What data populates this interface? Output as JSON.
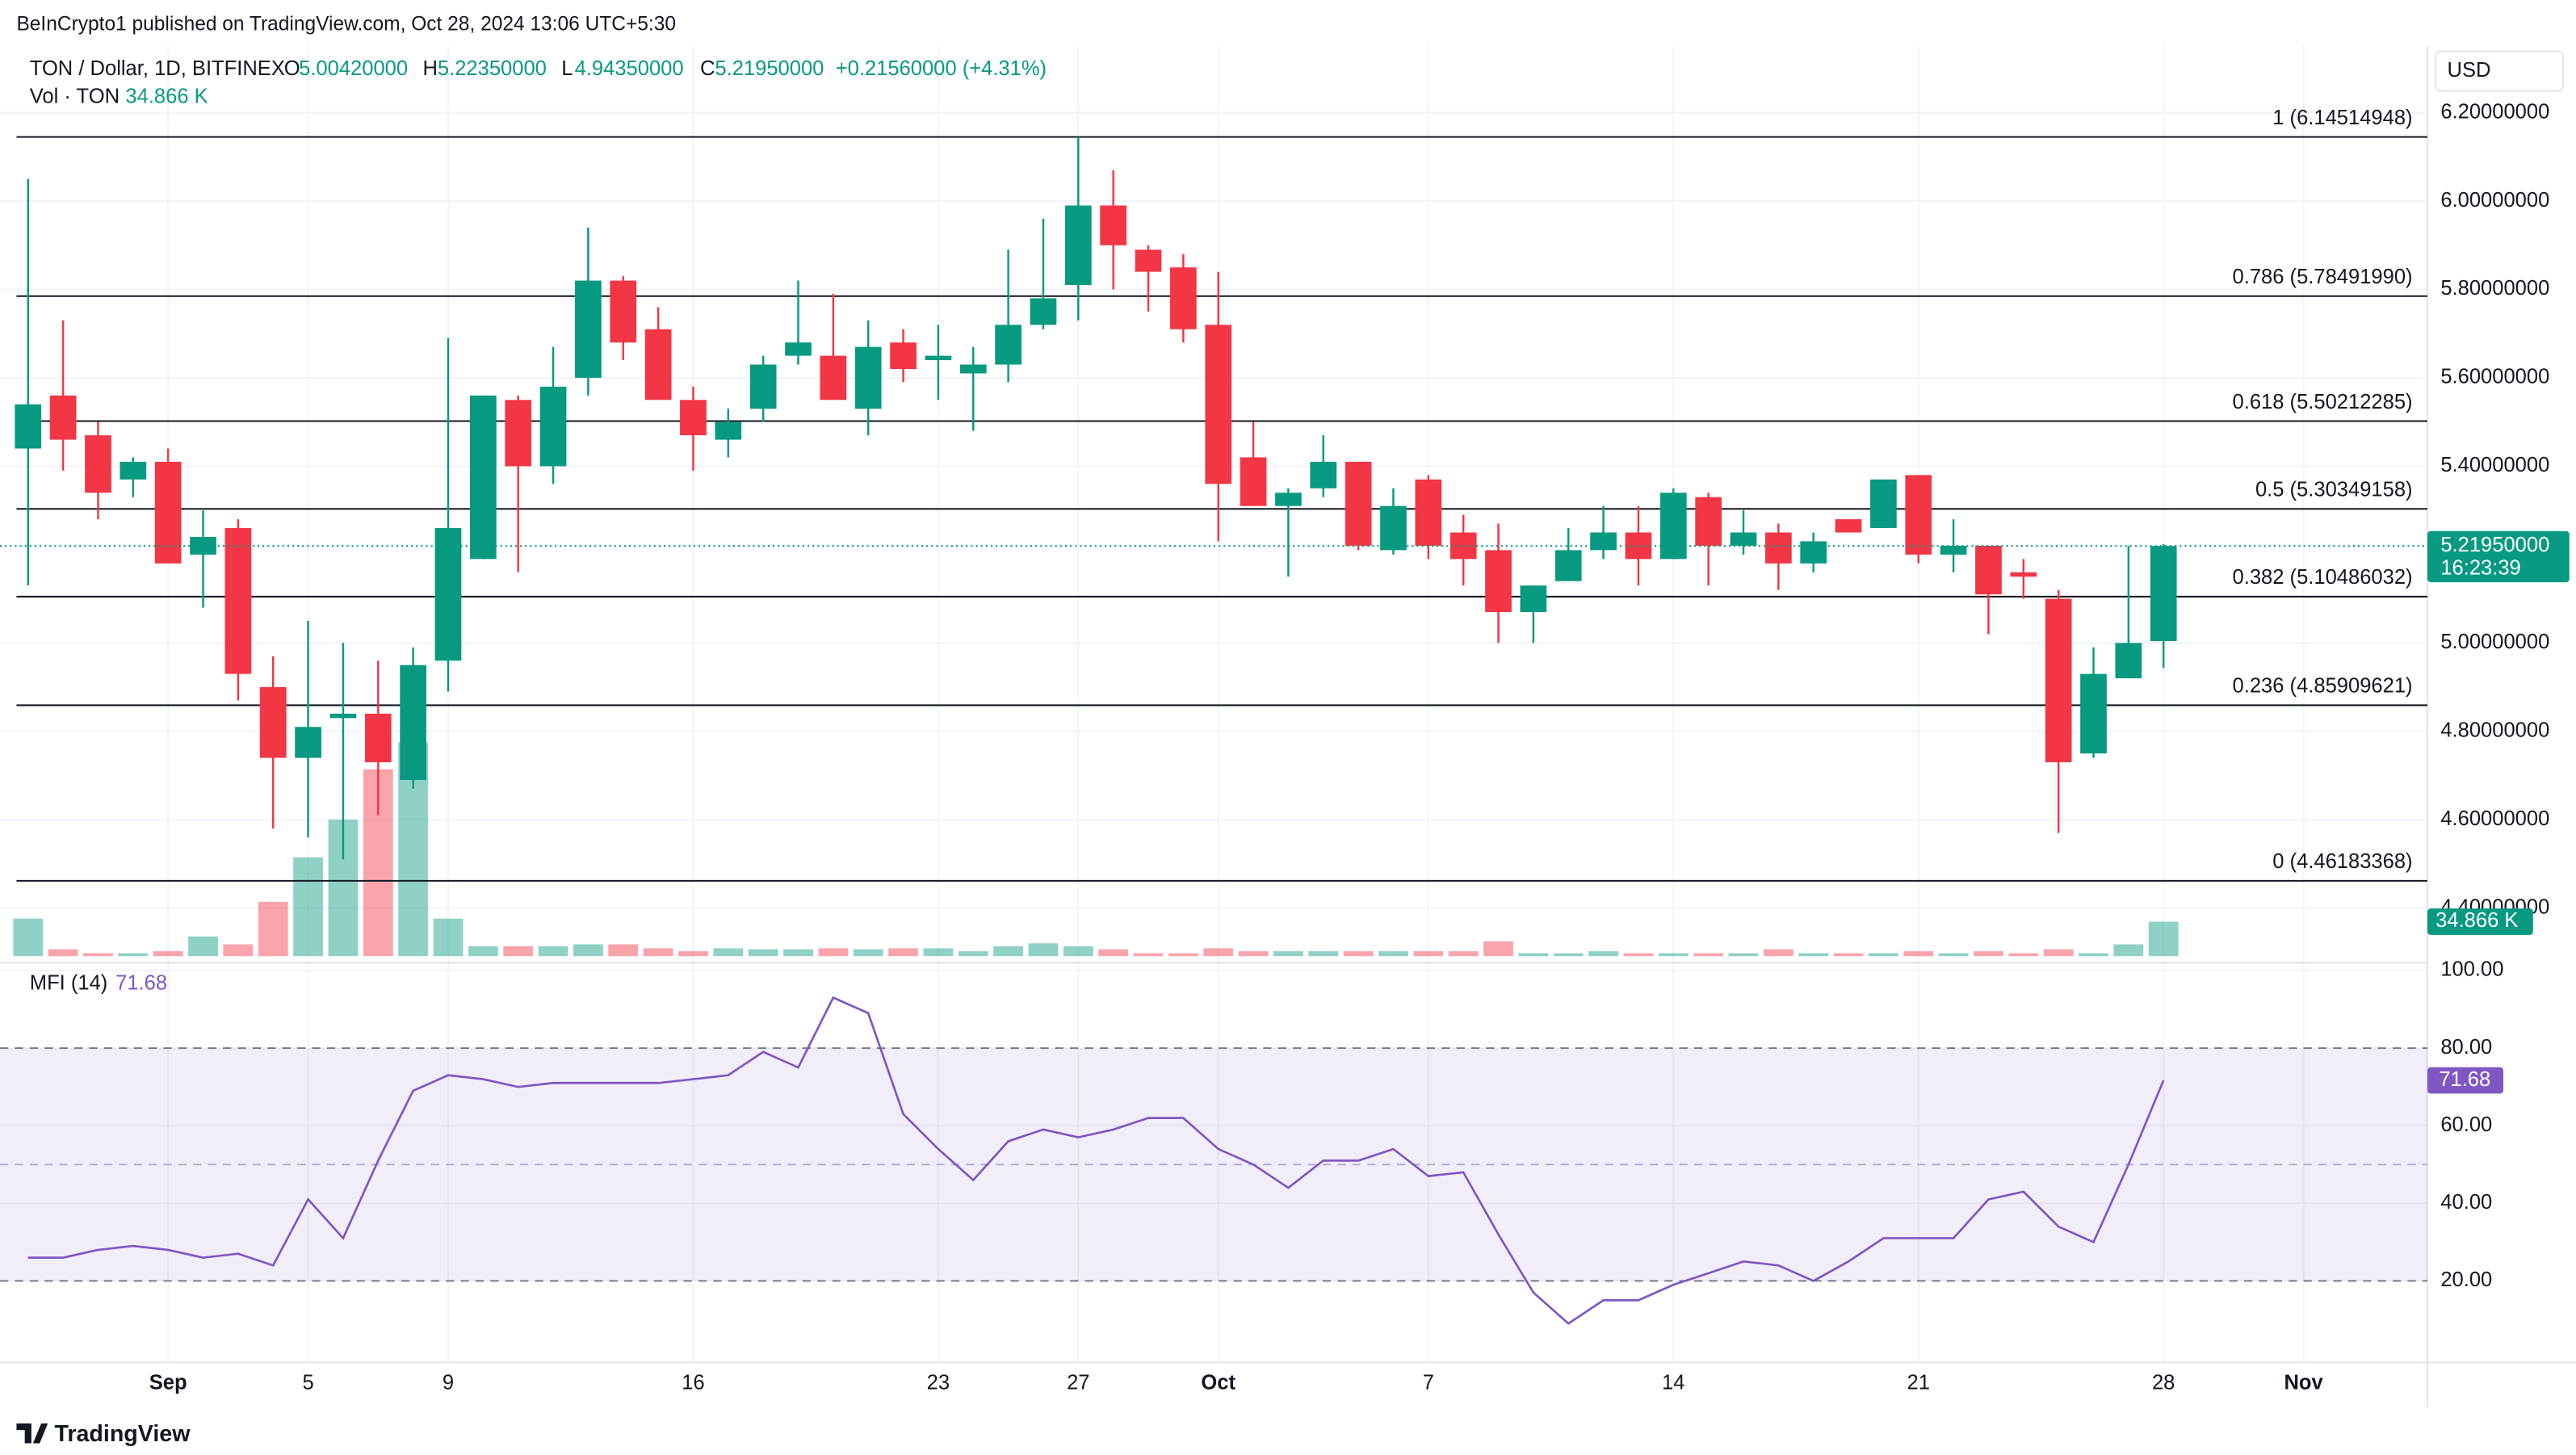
{
  "header": {
    "published": "BeInCrypto1 published on TradingView.com, Oct 28, 2024 13:06 UTC+5:30",
    "open": {
      "label": "O",
      "value": "5.00420000"
    },
    "high": {
      "label": "H",
      "value": "5.22350000"
    },
    "low": {
      "label": "L",
      "value": "4.94350000"
    },
    "close": {
      "label": "C",
      "value": "5.21950000"
    },
    "change": "+0.21560000 (+4.31%)",
    "currency": "USD",
    "logo": "TradingView"
  },
  "chart_data": [
    {
      "type": "candlestick",
      "title": "TON / Dollar, 1D, BITFINEX",
      "x": [
        "2024-08-28",
        "2024-08-29",
        "2024-08-30",
        "2024-08-31",
        "2024-09-01",
        "2024-09-02",
        "2024-09-03",
        "2024-09-04",
        "2024-09-05",
        "2024-09-06",
        "2024-09-07",
        "2024-09-08",
        "2024-09-09",
        "2024-09-10",
        "2024-09-11",
        "2024-09-12",
        "2024-09-13",
        "2024-09-14",
        "2024-09-15",
        "2024-09-16",
        "2024-09-17",
        "2024-09-18",
        "2024-09-19",
        "2024-09-20",
        "2024-09-21",
        "2024-09-22",
        "2024-09-23",
        "2024-09-24",
        "2024-09-25",
        "2024-09-26",
        "2024-09-27",
        "2024-09-28",
        "2024-09-29",
        "2024-09-30",
        "2024-10-01",
        "2024-10-02",
        "2024-10-03",
        "2024-10-04",
        "2024-10-05",
        "2024-10-06",
        "2024-10-07",
        "2024-10-08",
        "2024-10-09",
        "2024-10-10",
        "2024-10-11",
        "2024-10-12",
        "2024-10-13",
        "2024-10-14",
        "2024-10-15",
        "2024-10-16",
        "2024-10-17",
        "2024-10-18",
        "2024-10-19",
        "2024-10-20",
        "2024-10-21",
        "2024-10-22",
        "2024-10-23",
        "2024-10-24",
        "2024-10-25",
        "2024-10-26",
        "2024-10-27",
        "2024-10-28"
      ],
      "open": [
        5.44,
        5.56,
        5.47,
        5.37,
        5.41,
        5.2,
        5.26,
        4.9,
        4.74,
        4.83,
        4.84,
        4.69,
        4.96,
        5.19,
        5.55,
        5.4,
        5.6,
        5.82,
        5.71,
        5.55,
        5.46,
        5.53,
        5.65,
        5.65,
        5.53,
        5.68,
        5.64,
        5.61,
        5.63,
        5.72,
        5.81,
        5.99,
        5.89,
        5.85,
        5.72,
        5.42,
        5.31,
        5.35,
        5.41,
        5.21,
        5.37,
        5.25,
        5.21,
        5.07,
        5.14,
        5.21,
        5.25,
        5.19,
        5.33,
        5.22,
        5.25,
        5.18,
        5.28,
        5.26,
        5.38,
        5.2,
        5.22,
        5.16,
        5.1,
        4.75,
        4.92,
        5.0042
      ],
      "high": [
        6.05,
        5.73,
        5.5,
        5.42,
        5.44,
        5.3,
        5.28,
        4.97,
        5.05,
        5.0,
        4.96,
        4.99,
        5.69,
        5.56,
        5.56,
        5.67,
        5.94,
        5.83,
        5.76,
        5.58,
        5.53,
        5.65,
        5.82,
        5.79,
        5.73,
        5.71,
        5.72,
        5.67,
        5.89,
        5.96,
        6.145,
        6.07,
        5.9,
        5.88,
        5.84,
        5.5,
        5.35,
        5.47,
        5.41,
        5.35,
        5.38,
        5.29,
        5.27,
        5.13,
        5.26,
        5.31,
        5.31,
        5.35,
        5.34,
        5.3,
        5.27,
        5.25,
        5.28,
        5.37,
        5.38,
        5.28,
        5.22,
        5.19,
        5.12,
        4.99,
        5.22,
        5.2235
      ],
      "low": [
        5.13,
        5.39,
        5.28,
        5.33,
        5.18,
        5.08,
        4.87,
        4.58,
        4.56,
        4.51,
        4.61,
        4.67,
        4.89,
        5.19,
        5.16,
        5.36,
        5.56,
        5.64,
        5.55,
        5.39,
        5.42,
        5.5,
        5.63,
        5.55,
        5.47,
        5.59,
        5.55,
        5.48,
        5.59,
        5.71,
        5.73,
        5.8,
        5.75,
        5.68,
        5.23,
        5.31,
        5.15,
        5.33,
        5.21,
        5.2,
        5.19,
        5.13,
        5.0,
        5.0,
        5.14,
        5.19,
        5.13,
        5.19,
        5.13,
        5.2,
        5.12,
        5.16,
        5.25,
        5.26,
        5.18,
        5.16,
        5.02,
        5.1,
        4.57,
        4.74,
        4.92,
        4.9435
      ],
      "close": [
        5.54,
        5.46,
        5.34,
        5.41,
        5.18,
        5.24,
        4.93,
        4.74,
        4.81,
        4.84,
        4.73,
        4.95,
        5.26,
        5.56,
        5.4,
        5.58,
        5.82,
        5.68,
        5.55,
        5.47,
        5.5,
        5.63,
        5.68,
        5.55,
        5.67,
        5.62,
        5.65,
        5.63,
        5.72,
        5.78,
        5.99,
        5.9,
        5.84,
        5.71,
        5.36,
        5.31,
        5.34,
        5.41,
        5.22,
        5.31,
        5.22,
        5.19,
        5.07,
        5.13,
        5.21,
        5.25,
        5.19,
        5.34,
        5.22,
        5.25,
        5.18,
        5.23,
        5.25,
        5.37,
        5.2,
        5.22,
        5.11,
        5.15,
        4.73,
        4.93,
        5.0,
        5.2195
      ],
      "colors": {
        "up": "#089981",
        "down": "#f23645"
      },
      "ylim": [
        4.28,
        6.35
      ],
      "yticks": [
        {
          "value": 6.2,
          "label": "6.20000000"
        },
        {
          "value": 6.0,
          "label": "6.00000000"
        },
        {
          "value": 5.8,
          "label": "5.80000000"
        },
        {
          "value": 5.6,
          "label": "5.60000000"
        },
        {
          "value": 5.4,
          "label": "5.40000000"
        },
        {
          "value": 5.0,
          "label": "5.00000000"
        },
        {
          "value": 4.8,
          "label": "4.80000000"
        },
        {
          "value": 4.6,
          "label": "4.60000000"
        },
        {
          "value": 4.4,
          "label": "4.40000000"
        }
      ],
      "xticks": [
        {
          "value": "2024-09-01",
          "label": "Sep"
        },
        {
          "value": "2024-09-05",
          "label": "5"
        },
        {
          "value": "2024-09-09",
          "label": "9"
        },
        {
          "value": "2024-09-16",
          "label": "16"
        },
        {
          "value": "2024-09-23",
          "label": "23"
        },
        {
          "value": "2024-09-27",
          "label": "27"
        },
        {
          "value": "2024-10-01",
          "label": "Oct"
        },
        {
          "value": "2024-10-07",
          "label": "7"
        },
        {
          "value": "2024-10-14",
          "label": "14"
        },
        {
          "value": "2024-10-21",
          "label": "21"
        },
        {
          "value": "2024-10-28",
          "label": "28"
        },
        {
          "value": "2024-11-01",
          "label": "Nov"
        }
      ],
      "fib_levels": [
        {
          "value": 6.14514948,
          "label": "1 (6.14514948)"
        },
        {
          "value": 5.7849199,
          "label": "0.786 (5.78491990)"
        },
        {
          "value": 5.50212285,
          "label": "0.618 (5.50212285)"
        },
        {
          "value": 5.30349158,
          "label": "0.5 (5.30349158)"
        },
        {
          "value": 5.10486032,
          "label": "0.382 (5.10486032)"
        },
        {
          "value": 4.85909621,
          "label": "0.236 (4.85909621)"
        },
        {
          "value": 4.46183368,
          "label": "0 (4.46183368)"
        }
      ],
      "last_price": {
        "value": 5.2195,
        "label": "5.21950000"
      },
      "countdown": "16:23:39",
      "grid": true
    },
    {
      "type": "bar",
      "title": "Vol · TON",
      "values": [
        38,
        7,
        3,
        3,
        5,
        20,
        12,
        55,
        100,
        138,
        189,
        216,
        38,
        10,
        10,
        10,
        12,
        12,
        8,
        5,
        8,
        7,
        7,
        8,
        7,
        8,
        8,
        5,
        10,
        13,
        10,
        7,
        3,
        3,
        8,
        5,
        5,
        5,
        5,
        5,
        5,
        5,
        15,
        3,
        3,
        5,
        3,
        3,
        3,
        3,
        7,
        3,
        3,
        3,
        5,
        3,
        5,
        3,
        7,
        3,
        12,
        34.866
      ],
      "value_labels": [
        null,
        null,
        null,
        null,
        null,
        null,
        null,
        null,
        null,
        null,
        null,
        null,
        null,
        null,
        null,
        null,
        null,
        null,
        null,
        null,
        null,
        null,
        null,
        null,
        null,
        null,
        null,
        null,
        null,
        null,
        null,
        null,
        null,
        null,
        null,
        null,
        null,
        null,
        null,
        null,
        null,
        null,
        null,
        null,
        null,
        null,
        null,
        null,
        null,
        null,
        null,
        null,
        null,
        null,
        null,
        null,
        null,
        null,
        null,
        null,
        null,
        "34.866 K"
      ],
      "colors": {
        "up": "rgba(8,153,129,0.45)",
        "down": "rgba(242,54,69,0.45)"
      },
      "ylim": [
        0,
        920
      ]
    },
    {
      "type": "line",
      "title": "MFI (14)",
      "color": "#7e57c2",
      "values": [
        26,
        26,
        28,
        29,
        28,
        26,
        27,
        24,
        41,
        31,
        51,
        69,
        73,
        72,
        70,
        71,
        71,
        71,
        71,
        72,
        73,
        79,
        75,
        93,
        89,
        63,
        54,
        46,
        56,
        59,
        57,
        59,
        62,
        62,
        54,
        50,
        44,
        51,
        51,
        54,
        47,
        48,
        32,
        17,
        9,
        15,
        15,
        19,
        22,
        25,
        24,
        20,
        25,
        31,
        31,
        31,
        41,
        43,
        34,
        30,
        50,
        71.68
      ],
      "ylim": [
        -1,
        102
      ],
      "yticks": [
        {
          "value": 100,
          "label": "100.00"
        },
        {
          "value": 80,
          "label": "80.00"
        },
        {
          "value": 60,
          "label": "60.00"
        },
        {
          "value": 40,
          "label": "40.00"
        },
        {
          "value": 20,
          "label": "20.00"
        }
      ],
      "bands": {
        "upper": 80,
        "middle": 50,
        "lower": 20
      }
    }
  ]
}
